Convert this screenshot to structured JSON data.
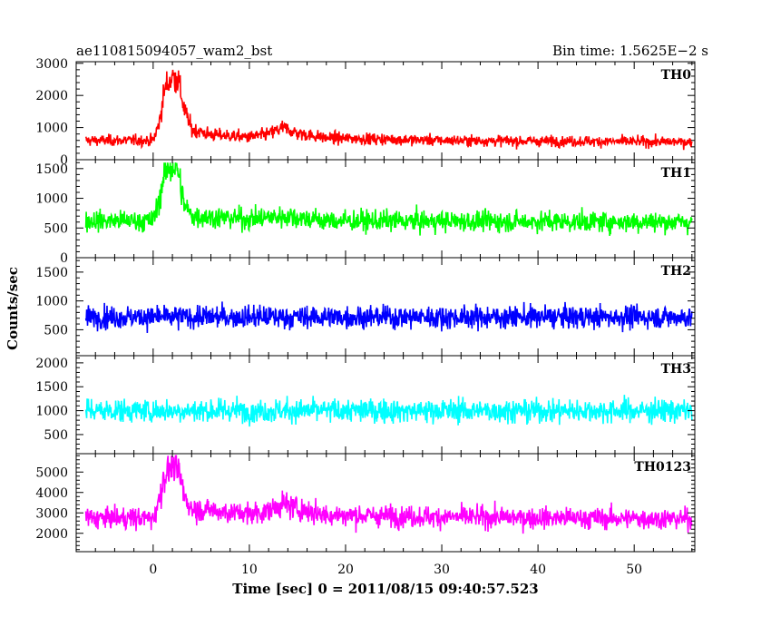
{
  "header": {
    "left_title": "ae110815094057_wam2_bst",
    "right_title": "Bin time: 1.5625E−2 s"
  },
  "xlabel": "Time [sec] 0 = 2011/08/15 09:40:57.523",
  "ylabel": "Counts/sec",
  "chart_data": {
    "type": "line",
    "x_range": [
      -8.0,
      56.3
    ],
    "x_ticks": [
      0,
      10,
      20,
      30,
      40,
      50
    ],
    "x_tick_labels": [
      "0",
      "10",
      "20",
      "30",
      "40",
      "50"
    ],
    "bin_time_s": 0.015625,
    "panels": [
      {
        "name": "TH0",
        "color": "#ff0000",
        "ylim": [
          0,
          3050
        ],
        "y_ticks": [
          0,
          1000,
          2000,
          3000
        ],
        "y_tick_labels": [
          "0",
          "1000",
          "2000",
          "3000"
        ],
        "profile_points": [
          [
            -7.0,
            600
          ],
          [
            0.0,
            600
          ],
          [
            0.6,
            1100
          ],
          [
            1.2,
            2200
          ],
          [
            2.0,
            2600
          ],
          [
            2.6,
            2500
          ],
          [
            3.2,
            1600
          ],
          [
            4.0,
            950
          ],
          [
            6.0,
            780
          ],
          [
            10.0,
            700
          ],
          [
            12.0,
            800
          ],
          [
            13.5,
            1000
          ],
          [
            15.0,
            820
          ],
          [
            18.0,
            680
          ],
          [
            30.0,
            600
          ],
          [
            56.0,
            550
          ]
        ],
        "max_counts": 3000
      },
      {
        "name": "TH1",
        "color": "#00ff00",
        "ylim": [
          0,
          1650
        ],
        "y_ticks": [
          0,
          500,
          1000,
          1500
        ],
        "y_tick_labels": [
          "0",
          "500",
          "1000",
          "1500"
        ],
        "profile_points": [
          [
            -7.0,
            620
          ],
          [
            0.0,
            620
          ],
          [
            0.5,
            900
          ],
          [
            1.2,
            1450
          ],
          [
            2.0,
            1550
          ],
          [
            2.6,
            1450
          ],
          [
            3.2,
            900
          ],
          [
            4.0,
            700
          ],
          [
            10.0,
            650
          ],
          [
            14.0,
            700
          ],
          [
            18.0,
            620
          ],
          [
            56.0,
            600
          ]
        ],
        "max_counts": 1600
      },
      {
        "name": "TH2",
        "color": "#0000ff",
        "ylim": [
          50,
          1750
        ],
        "y_ticks": [
          500,
          1000,
          1500
        ],
        "y_tick_labels": [
          "500",
          "1000",
          "1500"
        ],
        "profile_points": [
          [
            -7.0,
            720
          ],
          [
            56.0,
            720
          ]
        ],
        "max_counts": 1700
      },
      {
        "name": "TH3",
        "color": "#00ffff",
        "ylim": [
          100,
          2150
        ],
        "y_ticks": [
          500,
          1000,
          1500,
          2000
        ],
        "y_tick_labels": [
          "500",
          "1000",
          "1500",
          "2000"
        ],
        "profile_points": [
          [
            -7.0,
            1000
          ],
          [
            56.0,
            1000
          ]
        ],
        "max_counts": 2100
      },
      {
        "name": "TH0123",
        "color": "#ff00ff",
        "ylim": [
          1100,
          5900
        ],
        "y_ticks": [
          2000,
          3000,
          4000,
          5000
        ],
        "y_tick_labels": [
          "2000",
          "3000",
          "4000",
          "5000"
        ],
        "profile_points": [
          [
            -7.0,
            2750
          ],
          [
            0.0,
            2750
          ],
          [
            0.6,
            3600
          ],
          [
            1.2,
            4900
          ],
          [
            2.0,
            5300
          ],
          [
            2.6,
            5100
          ],
          [
            3.2,
            3900
          ],
          [
            4.0,
            3200
          ],
          [
            10.0,
            2950
          ],
          [
            12.0,
            3100
          ],
          [
            13.5,
            3450
          ],
          [
            15.0,
            3200
          ],
          [
            18.0,
            2900
          ],
          [
            30.0,
            2800
          ],
          [
            56.0,
            2700
          ]
        ],
        "max_counts": 5800
      }
    ]
  }
}
